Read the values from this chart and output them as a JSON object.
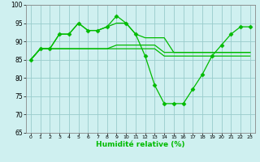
{
  "xlabel": "Humidité relative (%)",
  "xlim": [
    -0.5,
    23.5
  ],
  "ylim": [
    65,
    100
  ],
  "yticks": [
    65,
    70,
    75,
    80,
    85,
    90,
    95,
    100
  ],
  "xticks": [
    0,
    1,
    2,
    3,
    4,
    5,
    6,
    7,
    8,
    9,
    10,
    11,
    12,
    13,
    14,
    15,
    16,
    17,
    18,
    19,
    20,
    21,
    22,
    23
  ],
  "background_color": "#cff0f0",
  "grid_color": "#99cccc",
  "line_color": "#00bb00",
  "lines": [
    {
      "x": [
        0,
        1,
        2,
        3,
        4,
        5,
        6,
        7,
        8,
        9,
        10,
        11,
        12,
        13,
        14,
        15,
        16,
        17,
        18,
        19,
        20,
        21,
        22,
        23
      ],
      "y": [
        85,
        88,
        88,
        92,
        92,
        95,
        93,
        93,
        94,
        97,
        95,
        92,
        86,
        78,
        73,
        73,
        73,
        77,
        81,
        86,
        89,
        92,
        94,
        94
      ],
      "marker": true
    },
    {
      "x": [
        0,
        1,
        2,
        3,
        4,
        5,
        6,
        7,
        8,
        9,
        10,
        11,
        12,
        13,
        14,
        15,
        16,
        17,
        18,
        19,
        20,
        21,
        22,
        23
      ],
      "y": [
        85,
        88,
        88,
        88,
        88,
        88,
        88,
        88,
        88,
        88,
        88,
        88,
        88,
        88,
        86,
        86,
        86,
        86,
        86,
        86,
        86,
        86,
        86,
        86
      ],
      "marker": false
    },
    {
      "x": [
        0,
        1,
        2,
        3,
        4,
        5,
        6,
        7,
        8,
        9,
        10,
        11,
        12,
        13,
        14,
        15,
        16,
        17,
        18,
        19,
        20,
        21,
        22,
        23
      ],
      "y": [
        85,
        88,
        88,
        88,
        88,
        88,
        88,
        88,
        88,
        89,
        89,
        89,
        89,
        89,
        87,
        87,
        87,
        87,
        87,
        87,
        87,
        87,
        87,
        87
      ],
      "marker": false
    },
    {
      "x": [
        0,
        1,
        2,
        3,
        4,
        5,
        6,
        7,
        8,
        9,
        10,
        11,
        12,
        13,
        14,
        15,
        16,
        17,
        18,
        19,
        20,
        21,
        22,
        23
      ],
      "y": [
        85,
        88,
        88,
        92,
        92,
        95,
        93,
        93,
        94,
        95,
        95,
        92,
        91,
        91,
        91,
        87,
        87,
        87,
        87,
        87,
        87,
        87,
        87,
        87
      ],
      "marker": false
    }
  ]
}
